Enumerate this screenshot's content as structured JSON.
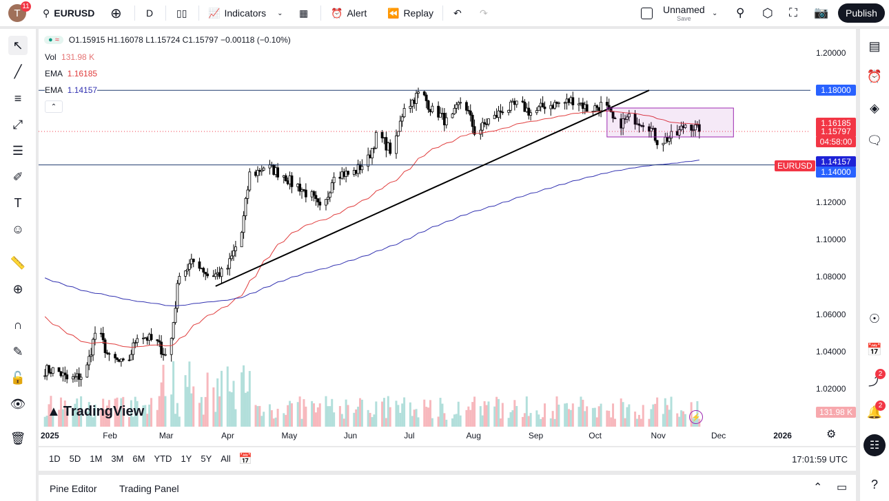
{
  "topbar": {
    "avatar_letter": "T",
    "avatar_badge": "11",
    "symbol": "EURUSD",
    "interval": "D",
    "indicators": "Indicators",
    "alert": "Alert",
    "replay": "Replay",
    "layout_name": "Unnamed",
    "layout_save": "Save",
    "publish": "Publish"
  },
  "legend": {
    "ohlc": "O1.15915 H1.16078 L1.15724 C1.15797 −0.00118 (−0.10%)",
    "vol_label": "Vol",
    "vol_value": "131.98 K",
    "ema1_label": "EMA",
    "ema1_value": "1.16185",
    "ema2_label": "EMA",
    "ema2_value": "1.14157"
  },
  "colors": {
    "up": "#089981",
    "down": "#f23645",
    "ema_fast": "#e03c3c",
    "ema_slow": "#3030b0",
    "level": "#2962ff",
    "hline": "#1e3a6e",
    "rect": "#9c27b0"
  },
  "price_axis": {
    "ticks": [
      "1.20000",
      "1.12000",
      "1.10000",
      "1.08000",
      "1.06000",
      "1.04000",
      "1.02000"
    ],
    "tick_values": [
      1.2,
      1.12,
      1.1,
      1.08,
      1.06,
      1.04,
      1.02
    ],
    "labels": {
      "level_high": "1.18000",
      "ema_fast": "1.16185",
      "symbol": "EURUSD",
      "last": "1.15797",
      "countdown": "04:58:00",
      "ema_slow": "1.14157",
      "level_low": "1.14000",
      "volume": "131.98 K"
    }
  },
  "time_axis": {
    "labels": [
      {
        "t": "2025",
        "date": "2025-01-01"
      },
      {
        "t": "Feb",
        "date": "2025-02-01"
      },
      {
        "t": "Mar",
        "date": "2025-03-01"
      },
      {
        "t": "Apr",
        "date": "2025-04-01"
      },
      {
        "t": "May",
        "date": "2025-05-01"
      },
      {
        "t": "Jun",
        "date": "2025-06-01"
      },
      {
        "t": "Jul",
        "date": "2025-07-01"
      },
      {
        "t": "Aug",
        "date": "2025-08-01"
      },
      {
        "t": "Sep",
        "date": "2025-09-01"
      },
      {
        "t": "Oct",
        "date": "2025-10-01"
      },
      {
        "t": "Nov",
        "date": "2025-11-01"
      },
      {
        "t": "Dec",
        "date": "2025-12-01"
      },
      {
        "t": "2026",
        "date": "2026-01-01"
      }
    ]
  },
  "chart_data": {
    "type": "candlestick",
    "symbol": "EURUSD",
    "interval": "D",
    "ylim": [
      1.01,
      1.205
    ],
    "weekly_closes": {
      "start": "2024-12-30",
      "values": [
        1.03,
        1.025,
        1.027,
        1.05,
        1.036,
        1.033,
        1.049,
        1.046,
        1.038,
        1.083,
        1.088,
        1.081,
        1.082,
        1.096,
        1.135,
        1.139,
        1.136,
        1.13,
        1.125,
        1.116,
        1.136,
        1.135,
        1.14,
        1.155,
        1.148,
        1.172,
        1.178,
        1.169,
        1.163,
        1.174,
        1.158,
        1.164,
        1.17,
        1.172,
        1.168,
        1.172,
        1.173,
        1.175,
        1.17,
        1.172,
        1.162,
        1.165,
        1.163,
        1.153,
        1.155,
        1.162,
        1.158
      ]
    },
    "last_close": 1.15797,
    "ema_fast_seed": 1.06,
    "ema_slow_seed": 1.08,
    "horizontal_levels": [
      1.18,
      1.14
    ],
    "trendline": {
      "from": {
        "date": "2025-03-25",
        "price": 1.075
      },
      "to": {
        "date": "2025-10-27",
        "price": 1.18
      }
    },
    "rectangle": {
      "from": "2025-10-06",
      "to": "2025-12-08",
      "top": 1.1705,
      "bottom": 1.155
    }
  },
  "bottombar": {
    "ranges": [
      "1D",
      "5D",
      "1M",
      "3M",
      "6M",
      "YTD",
      "1Y",
      "5Y",
      "All"
    ],
    "clock": "17:01:59 UTC"
  },
  "panel": {
    "pine": "Pine Editor",
    "trading": "Trading Panel"
  },
  "watermark": "TradingView",
  "rightbar": {
    "ideas_badge": "2",
    "alerts_badge": "2"
  }
}
